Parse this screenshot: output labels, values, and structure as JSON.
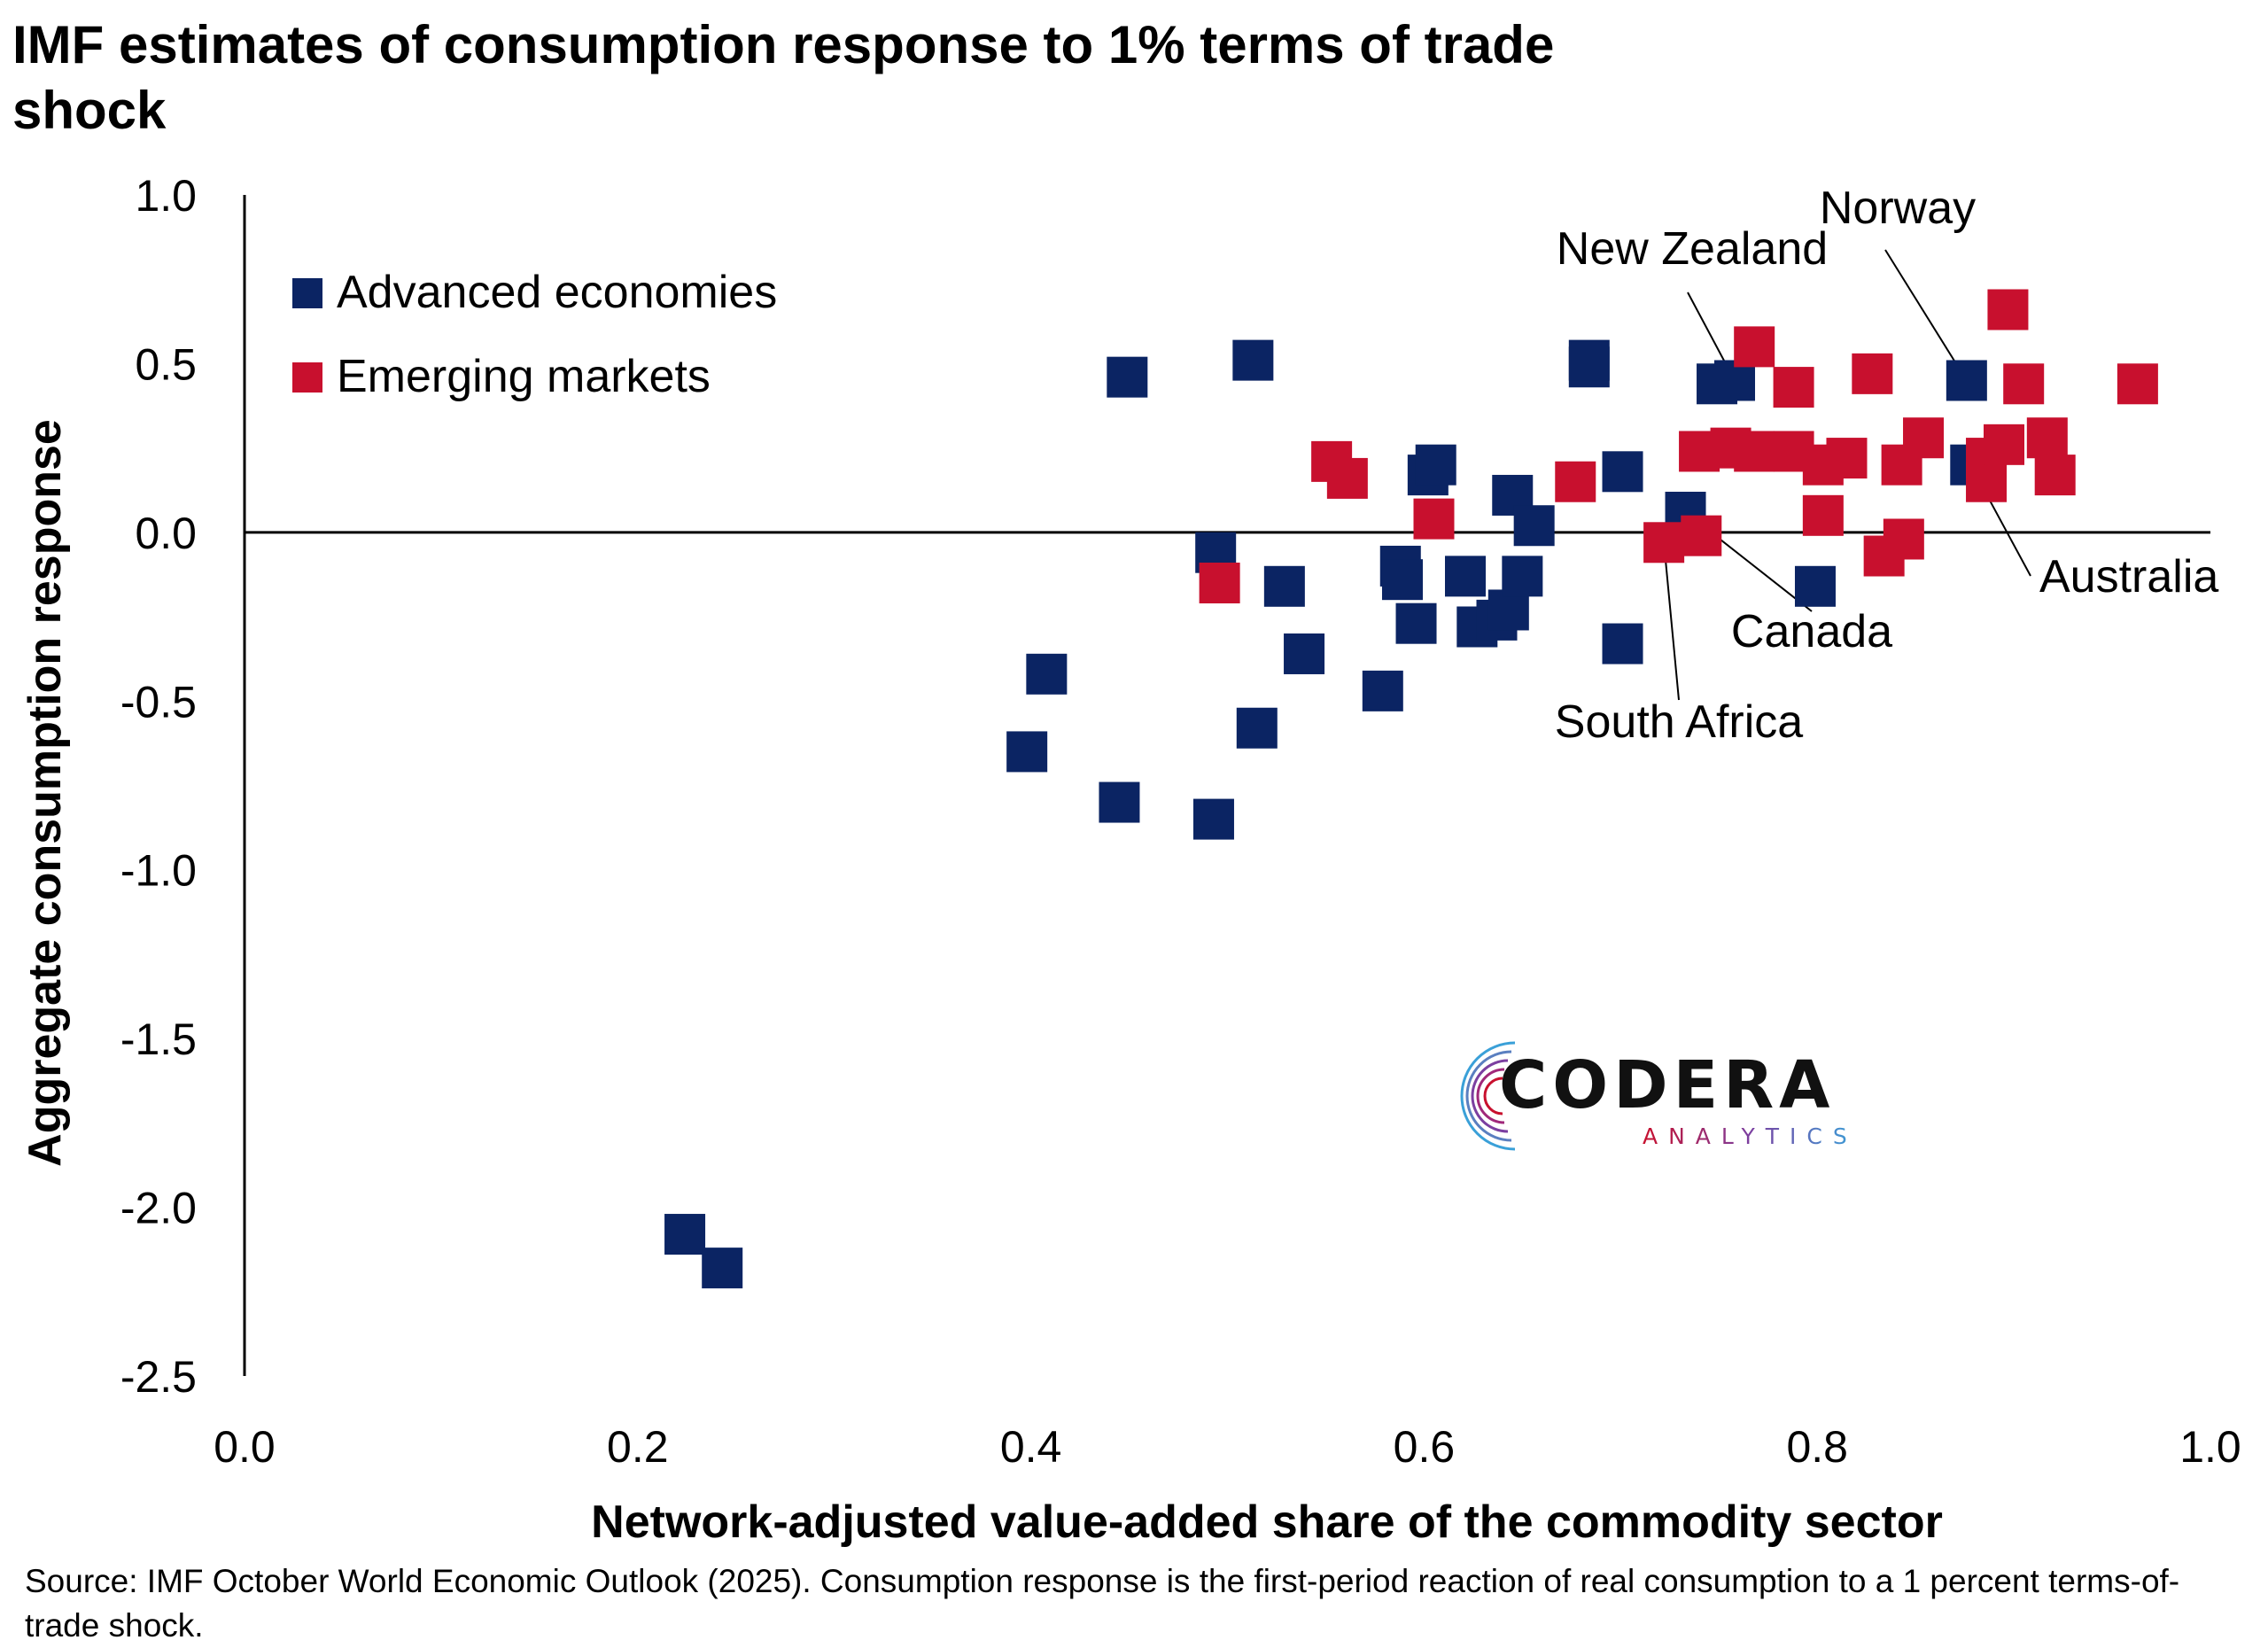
{
  "chart_data": {
    "type": "scatter",
    "title": "IMF estimates of consumption response to 1% terms of trade shock",
    "xlabel": "Network-adjusted value-added share of the commodity sector",
    "ylabel": "Aggregate consumption response",
    "xlim": [
      0.0,
      1.0
    ],
    "ylim": [
      -2.5,
      1.0
    ],
    "x_ticks": [
      "0.0",
      "0.2",
      "0.4",
      "0.6",
      "0.8",
      "1.0"
    ],
    "y_ticks": [
      "1.0",
      "0.5",
      "0.0",
      "-0.5",
      "-1.0",
      "-1.5",
      "-2.0",
      "-2.5"
    ],
    "grid": false,
    "zero_line": true,
    "legend_position": "top-left",
    "series": [
      {
        "name": "Advanced economies",
        "color": "#0b2463",
        "marker": "square",
        "points": [
          [
            0.224,
            -2.08
          ],
          [
            0.243,
            -2.18
          ],
          [
            0.398,
            -0.65
          ],
          [
            0.408,
            -0.42
          ],
          [
            0.445,
            -0.8
          ],
          [
            0.449,
            0.46
          ],
          [
            0.493,
            -0.85
          ],
          [
            0.494,
            -0.06
          ],
          [
            0.513,
            0.51
          ],
          [
            0.515,
            -0.58
          ],
          [
            0.529,
            -0.16
          ],
          [
            0.539,
            -0.36
          ],
          [
            0.579,
            -0.47
          ],
          [
            0.588,
            -0.1
          ],
          [
            0.589,
            -0.14
          ],
          [
            0.596,
            -0.27
          ],
          [
            0.602,
            0.17
          ],
          [
            0.606,
            0.2
          ],
          [
            0.621,
            -0.13
          ],
          [
            0.627,
            -0.28
          ],
          [
            0.637,
            -0.26
          ],
          [
            0.643,
            -0.23
          ],
          [
            0.645,
            0.11
          ],
          [
            0.65,
            -0.13
          ],
          [
            0.656,
            0.02
          ],
          [
            0.684,
            0.49
          ],
          [
            0.684,
            0.51
          ],
          [
            0.701,
            0.18
          ],
          [
            0.701,
            -0.33
          ],
          [
            0.733,
            0.06
          ],
          [
            0.749,
            0.44
          ],
          [
            0.758,
            0.45
          ],
          [
            0.799,
            -0.16
          ],
          [
            0.876,
            0.45
          ],
          [
            0.878,
            0.2
          ]
        ]
      },
      {
        "name": "Emerging markets",
        "color": "#c8102e",
        "marker": "square",
        "points": [
          [
            0.496,
            -0.15
          ],
          [
            0.553,
            0.21
          ],
          [
            0.561,
            0.16
          ],
          [
            0.605,
            0.04
          ],
          [
            0.677,
            0.15
          ],
          [
            0.722,
            -0.03
          ],
          [
            0.74,
            0.24
          ],
          [
            0.741,
            -0.01
          ],
          [
            0.756,
            0.25
          ],
          [
            0.768,
            0.55
          ],
          [
            0.768,
            0.24
          ],
          [
            0.788,
            0.43
          ],
          [
            0.788,
            0.24
          ],
          [
            0.803,
            0.2
          ],
          [
            0.803,
            0.05
          ],
          [
            0.815,
            0.22
          ],
          [
            0.828,
            0.47
          ],
          [
            0.834,
            -0.07
          ],
          [
            0.843,
            0.2
          ],
          [
            0.844,
            -0.02
          ],
          [
            0.854,
            0.28
          ],
          [
            0.886,
            0.22
          ],
          [
            0.886,
            0.15
          ],
          [
            0.895,
            0.26
          ],
          [
            0.897,
            0.66
          ],
          [
            0.905,
            0.44
          ],
          [
            0.917,
            0.28
          ],
          [
            0.921,
            0.17
          ],
          [
            0.963,
            0.44
          ]
        ]
      }
    ],
    "annotations": [
      {
        "text": "Norway",
        "x": 0.876,
        "y": 0.45
      },
      {
        "text": "New Zealand",
        "x": 0.758,
        "y": 0.45
      },
      {
        "text": "Australia",
        "x": 0.878,
        "y": 0.2
      },
      {
        "text": "Canada",
        "x": 0.733,
        "y": 0.06
      },
      {
        "text": "South Africa",
        "x": 0.722,
        "y": -0.03
      }
    ]
  },
  "source": "Source: IMF October World Economic Outlook (2025). Consumption response is the first-period reaction of real consumption to a 1 percent terms-of-trade shock.",
  "logo": {
    "word": "CODERA",
    "sub": "ANALYTICS",
    "colors": [
      "#c8102e",
      "#7b3fa0",
      "#3aa0d8"
    ]
  }
}
